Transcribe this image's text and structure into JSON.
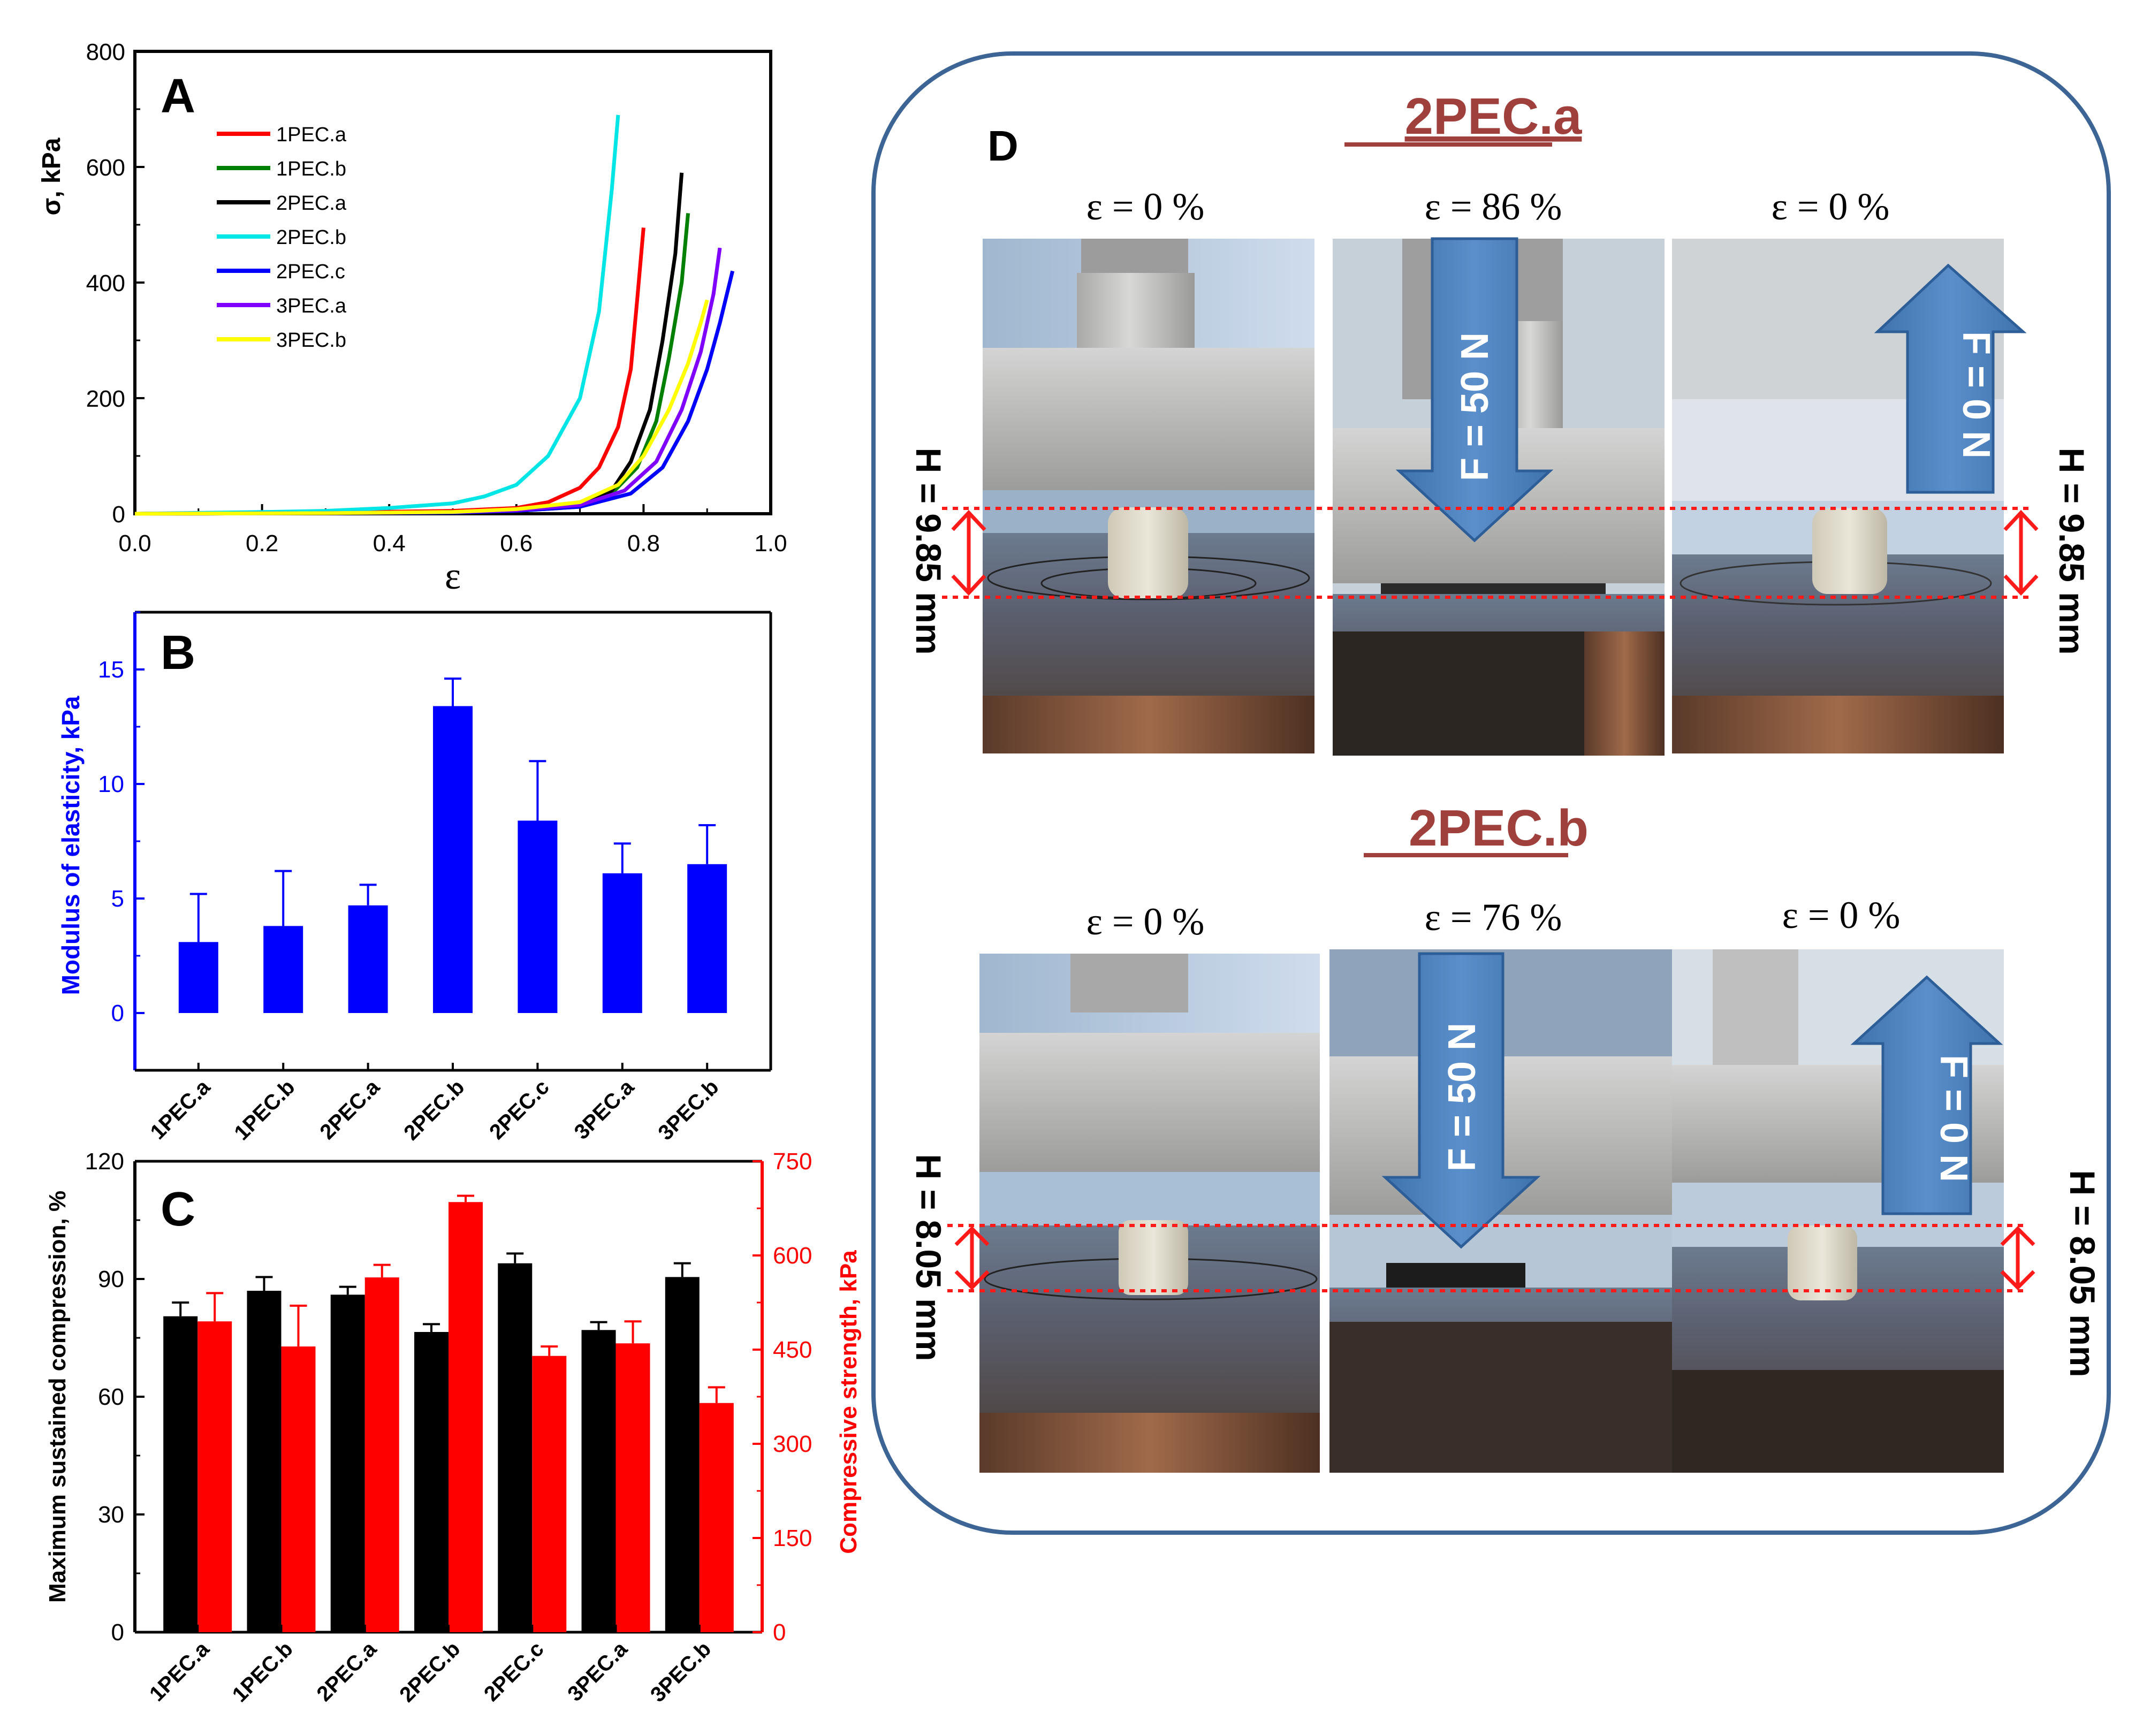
{
  "panelA": {
    "letter": "A",
    "ylabel": "σ, kPa",
    "xlabel": "ε",
    "legend": [
      "1PEC.a",
      "1PEC.b",
      "2PEC.a",
      "2PEC.b",
      "2PEC.c",
      "3PEC.a",
      "3PEC.b"
    ]
  },
  "panelB": {
    "letter": "B",
    "ylabel": "Modulus of elasticity, kPa"
  },
  "panelC": {
    "letter": "C",
    "ylabel_left": "Maximum sustained compression, %",
    "ylabel_right": "Compressive strength, kPa"
  },
  "panelD": {
    "letter": "D",
    "rowA": {
      "title": "2PEC.a",
      "strains": [
        "ε = 0 %",
        "ε = 86 %",
        "ε = 0 %"
      ],
      "force_on": "F = 50 N",
      "force_off": "F = 0 N",
      "height": "H = 9.85 mm"
    },
    "rowB": {
      "title": "2PEC.b",
      "strains": [
        "ε = 0 %",
        "ε = 76 %",
        "ε = 0 %"
      ],
      "force_on": "F = 50 N",
      "force_off": "F = 0 N",
      "height": "H = 8.05 mm"
    }
  },
  "chart_data": [
    {
      "id": "A",
      "type": "line",
      "title": "",
      "xlabel": "ε",
      "ylabel": "σ, kPa",
      "xlim": [
        0.0,
        1.0
      ],
      "ylim": [
        0,
        800
      ],
      "xticks": [
        "0.0",
        "0.2",
        "0.4",
        "0.6",
        "0.8",
        "1.0"
      ],
      "yticks": [
        "0",
        "200",
        "400",
        "600",
        "800"
      ],
      "legend_position": "top-left",
      "series": [
        {
          "name": "1PEC.a",
          "color": "#ff0000",
          "x": [
            0,
            0.3,
            0.5,
            0.6,
            0.65,
            0.7,
            0.73,
            0.76,
            0.78,
            0.79,
            0.8
          ],
          "y": [
            0,
            2,
            5,
            10,
            20,
            45,
            80,
            150,
            250,
            370,
            495
          ]
        },
        {
          "name": "1PEC.b",
          "color": "#008000",
          "x": [
            0,
            0.3,
            0.5,
            0.6,
            0.7,
            0.75,
            0.79,
            0.82,
            0.84,
            0.86,
            0.87
          ],
          "y": [
            0,
            1,
            3,
            5,
            12,
            35,
            80,
            160,
            270,
            400,
            520
          ]
        },
        {
          "name": "2PEC.a",
          "color": "#000000",
          "x": [
            0,
            0.3,
            0.5,
            0.6,
            0.7,
            0.75,
            0.78,
            0.81,
            0.83,
            0.85,
            0.86
          ],
          "y": [
            0,
            1,
            3,
            6,
            15,
            40,
            90,
            180,
            300,
            450,
            590
          ]
        },
        {
          "name": "2PEC.b",
          "color": "#00e5e5",
          "x": [
            0,
            0.2,
            0.3,
            0.4,
            0.5,
            0.55,
            0.6,
            0.65,
            0.7,
            0.73,
            0.75,
            0.76
          ],
          "y": [
            0,
            3,
            5,
            10,
            18,
            30,
            50,
            100,
            200,
            350,
            560,
            690
          ]
        },
        {
          "name": "2PEC.c",
          "color": "#0000ff",
          "x": [
            0,
            0.3,
            0.5,
            0.6,
            0.7,
            0.78,
            0.83,
            0.87,
            0.9,
            0.92,
            0.94
          ],
          "y": [
            0,
            1,
            2,
            5,
            12,
            35,
            80,
            160,
            250,
            330,
            420
          ]
        },
        {
          "name": "3PEC.a",
          "color": "#8000ff",
          "x": [
            0,
            0.3,
            0.5,
            0.6,
            0.7,
            0.77,
            0.82,
            0.86,
            0.89,
            0.91,
            0.92
          ],
          "y": [
            0,
            1,
            3,
            6,
            15,
            40,
            90,
            180,
            280,
            380,
            460
          ]
        },
        {
          "name": "3PEC.b",
          "color": "#ffff00",
          "x": [
            0,
            0.3,
            0.5,
            0.6,
            0.7,
            0.76,
            0.8,
            0.84,
            0.87,
            0.89,
            0.9
          ],
          "y": [
            0,
            1,
            3,
            8,
            20,
            50,
            100,
            180,
            260,
            330,
            370
          ]
        }
      ]
    },
    {
      "id": "B",
      "type": "bar",
      "title": "",
      "xlabel": "",
      "ylabel": "Modulus of elasticity, kPa",
      "ylim": [
        -2.5,
        17.5
      ],
      "yticks": [
        "0",
        "5",
        "10",
        "15"
      ],
      "categories": [
        "1PEC.a",
        "1PEC.b",
        "2PEC.a",
        "2PEC.b",
        "2PEC.c",
        "3PEC.a",
        "3PEC.b"
      ],
      "values": [
        3.1,
        3.8,
        4.7,
        13.4,
        8.4,
        6.1,
        6.5
      ],
      "errors": [
        2.1,
        2.4,
        0.9,
        1.2,
        2.6,
        1.3,
        1.7
      ],
      "color": "#0000ff"
    },
    {
      "id": "C",
      "type": "bar",
      "title": "",
      "xlabel": "",
      "ylabel": "Maximum sustained compression, %",
      "ylabel_right": "Compressive strength, kPa",
      "ylim": [
        0,
        120
      ],
      "ylim_right": [
        0,
        750
      ],
      "yticks": [
        "0",
        "30",
        "60",
        "90",
        "120"
      ],
      "yticks_right": [
        "0",
        "150",
        "300",
        "450",
        "600",
        "750"
      ],
      "categories": [
        "1PEC.a",
        "1PEC.b",
        "2PEC.a",
        "2PEC.b",
        "2PEC.c",
        "3PEC.a",
        "3PEC.b"
      ],
      "series": [
        {
          "name": "Maximum sustained compression, %",
          "axis": "left",
          "color": "#000000",
          "values": [
            80.5,
            87,
            86,
            76.5,
            94,
            77,
            90.5
          ],
          "errors": [
            3.5,
            3.5,
            2,
            2,
            2.5,
            2,
            3.5
          ]
        },
        {
          "name": "Compressive strength, kPa",
          "axis": "right",
          "color": "#ff0000",
          "values": [
            495,
            455,
            565,
            685,
            440,
            460,
            365
          ],
          "errors": [
            45,
            65,
            20,
            10,
            15,
            35,
            25
          ]
        }
      ]
    }
  ]
}
